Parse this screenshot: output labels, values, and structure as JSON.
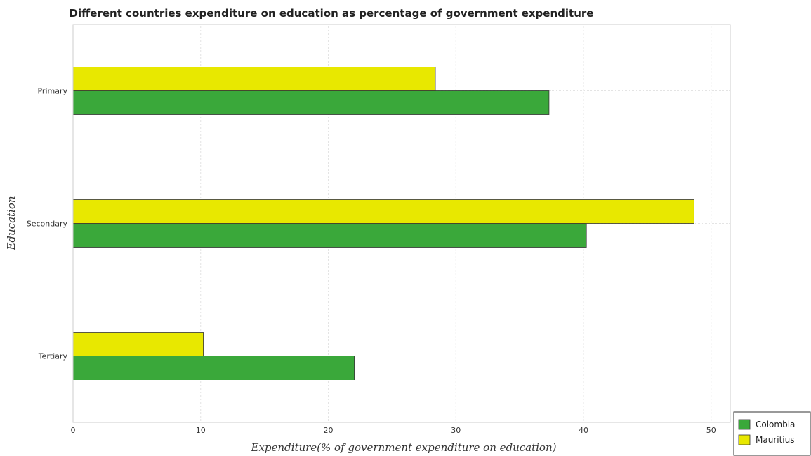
{
  "chart_data": {
    "type": "bar",
    "orientation": "horizontal",
    "title": "Different countries expenditure on education as percentage of government expenditure",
    "xlabel": "Expenditure(% of government expenditure on education)",
    "ylabel": "Education",
    "categories": [
      "Primary",
      "Secondary",
      "Tertiary"
    ],
    "series": [
      {
        "name": "Colombia",
        "color": "#3aa83a",
        "values": [
          37.3,
          40.23,
          22.04
        ]
      },
      {
        "name": "Mauritius",
        "color": "#e8e800",
        "values": [
          28.39,
          48.66,
          10.21
        ]
      }
    ],
    "xlim": [
      0,
      51.5
    ],
    "xticks": [
      0,
      10,
      20,
      30,
      40,
      50
    ],
    "grid": true,
    "legend_position": "bottom-right"
  }
}
